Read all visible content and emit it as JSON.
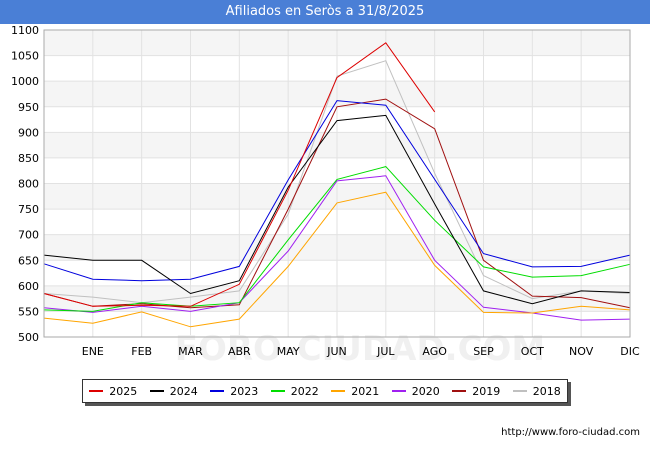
{
  "chart_data": {
    "type": "line",
    "title": "Afiliados en Seròs a 31/8/2025",
    "xlabel": "",
    "ylabel": "",
    "categories": [
      "",
      "ENE",
      "FEB",
      "MAR",
      "ABR",
      "MAY",
      "JUN",
      "JUL",
      "AGO",
      "SEP",
      "OCT",
      "NOV",
      "DIC"
    ],
    "ylim": [
      500,
      1100
    ],
    "yticks": [
      500,
      550,
      600,
      650,
      700,
      750,
      800,
      850,
      900,
      950,
      1000,
      1050,
      1100
    ],
    "series": [
      {
        "name": "2018",
        "color": "#c0c0c0",
        "values": [
          585,
          578,
          567,
          578,
          590,
          740,
          1010,
          1040,
          820,
          620,
          575,
          590,
          585
        ]
      },
      {
        "name": "2019",
        "color": "#a01010",
        "values": [
          585,
          560,
          565,
          557,
          563,
          750,
          950,
          965,
          907,
          650,
          580,
          577,
          557
        ]
      },
      {
        "name": "2020",
        "color": "#a020f0",
        "values": [
          557,
          548,
          560,
          550,
          567,
          668,
          805,
          815,
          650,
          558,
          547,
          533,
          535
        ]
      },
      {
        "name": "2021",
        "color": "#ffa500",
        "values": [
          537,
          527,
          549,
          520,
          535,
          638,
          762,
          783,
          640,
          548,
          547,
          560,
          553
        ]
      },
      {
        "name": "2022",
        "color": "#00dd00",
        "values": [
          553,
          550,
          567,
          560,
          567,
          690,
          808,
          833,
          728,
          637,
          617,
          620,
          642
        ]
      },
      {
        "name": "2023",
        "color": "#0000dd",
        "values": [
          643,
          613,
          610,
          613,
          638,
          807,
          962,
          953,
          808,
          663,
          637,
          638,
          660
        ]
      },
      {
        "name": "2024",
        "color": "#000000",
        "values": [
          660,
          650,
          650,
          585,
          610,
          793,
          923,
          933,
          760,
          590,
          565,
          590,
          587
        ]
      },
      {
        "name": "2025",
        "color": "#dd0000",
        "values": [
          585,
          560,
          562,
          560,
          603,
          787,
          1007,
          1075,
          940,
          null,
          null,
          null,
          null
        ]
      }
    ],
    "legend_order": [
      "2025",
      "2024",
      "2023",
      "2022",
      "2021",
      "2020",
      "2019",
      "2018"
    ],
    "legend": "bottom"
  },
  "watermark": "FORO-CIUDAD.COM",
  "footer_url": "http://www.foro-ciudad.com"
}
